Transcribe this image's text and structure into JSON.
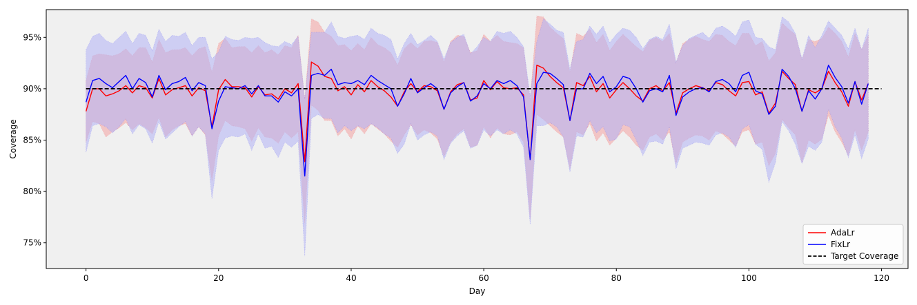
{
  "chart_data": {
    "type": "line",
    "xlabel": "Day",
    "ylabel": "Coverage",
    "xlim": [
      -6,
      124
    ],
    "ylim": [
      72.5,
      97.7
    ],
    "x_ticks": [
      0,
      20,
      40,
      60,
      80,
      100,
      120
    ],
    "x_tick_labels": [
      "0",
      "20",
      "40",
      "60",
      "80",
      "100",
      "120"
    ],
    "y_ticks": [
      75,
      80,
      85,
      90,
      95
    ],
    "y_tick_labels": [
      "75%",
      "80%",
      "85%",
      "90%",
      "95%"
    ],
    "grid": false,
    "legend_position": "lower-right",
    "plot_background": "#f0f0f0",
    "target": {
      "name": "Target Coverage",
      "value": 90,
      "color": "#000000"
    },
    "x": [
      0,
      1,
      2,
      3,
      4,
      5,
      6,
      7,
      8,
      9,
      10,
      11,
      12,
      13,
      14,
      15,
      16,
      17,
      18,
      19,
      20,
      21,
      22,
      23,
      24,
      25,
      26,
      27,
      28,
      29,
      30,
      31,
      32,
      33,
      34,
      35,
      36,
      37,
      38,
      39,
      40,
      41,
      42,
      43,
      44,
      45,
      46,
      47,
      48,
      49,
      50,
      51,
      52,
      53,
      54,
      55,
      56,
      57,
      58,
      59,
      60,
      61,
      62,
      63,
      64,
      65,
      66,
      67,
      68,
      69,
      70,
      71,
      72,
      73,
      74,
      75,
      76,
      77,
      78,
      79,
      80,
      81,
      82,
      83,
      84,
      85,
      86,
      87,
      88,
      89,
      90,
      91,
      92,
      93,
      94,
      95,
      96,
      97,
      98,
      99,
      100,
      101,
      102,
      103,
      104,
      105,
      106,
      107,
      108,
      109,
      110,
      111,
      112,
      113,
      114,
      115,
      116,
      117,
      118
    ],
    "series": [
      {
        "name": "AdaLr",
        "color": "#ff0000",
        "band_color": "#f4a3a3",
        "values": [
          87.8,
          90.0,
          90.0,
          89.3,
          89.5,
          89.8,
          90.3,
          89.6,
          90.3,
          90.1,
          89.1,
          91.0,
          89.4,
          89.9,
          90.1,
          90.3,
          89.3,
          90.1,
          89.8,
          86.3,
          89.9,
          90.9,
          90.2,
          90.2,
          90.1,
          89.2,
          90.2,
          89.4,
          89.5,
          89.0,
          90.0,
          89.6,
          90.5,
          82.9,
          92.6,
          92.2,
          91.2,
          91.0,
          89.8,
          90.2,
          89.4,
          90.4,
          89.7,
          90.8,
          90.2,
          89.8,
          89.2,
          88.3,
          89.7,
          90.5,
          89.7,
          90.3,
          90.2,
          89.8,
          88.0,
          89.7,
          90.4,
          90.6,
          88.9,
          89.1,
          90.8,
          89.9,
          90.7,
          90.1,
          90.0,
          90.1,
          89.4,
          83.1,
          92.3,
          92.0,
          91.2,
          90.6,
          90.1,
          86.9,
          90.6,
          90.3,
          91.2,
          89.7,
          90.5,
          89.1,
          89.9,
          90.6,
          90.0,
          89.3,
          88.8,
          90.0,
          90.3,
          89.8,
          90.6,
          87.6,
          89.6,
          90.0,
          90.3,
          90.1,
          89.8,
          90.6,
          90.4,
          89.8,
          89.3,
          90.6,
          90.7,
          89.4,
          89.7,
          87.6,
          88.6,
          91.7,
          91.0,
          90.4,
          87.8,
          89.9,
          89.6,
          90.0,
          91.7,
          90.6,
          89.7,
          88.3,
          90.7,
          88.9,
          90.5
        ],
        "lower": [
          84.8,
          86.8,
          86.6,
          85.3,
          85.8,
          86.2,
          86.7,
          86.0,
          86.6,
          86.2,
          85.6,
          87.2,
          85.3,
          86.0,
          86.4,
          86.6,
          85.4,
          86.3,
          85.5,
          81.0,
          85.4,
          86.9,
          86.4,
          86.3,
          86.1,
          84.9,
          86.2,
          85.3,
          85.2,
          84.7,
          85.8,
          85.2,
          85.8,
          76.8,
          88.4,
          87.9,
          86.9,
          86.9,
          85.4,
          86.1,
          85.1,
          86.4,
          85.6,
          86.6,
          86.1,
          85.6,
          84.9,
          84.3,
          85.5,
          86.5,
          85.5,
          86.0,
          85.7,
          85.1,
          83.4,
          84.8,
          85.6,
          86.1,
          84.3,
          84.5,
          86.3,
          85.2,
          86.2,
          85.6,
          85.5,
          85.8,
          84.8,
          77.3,
          87.5,
          87.0,
          86.4,
          85.8,
          85.3,
          82.2,
          85.8,
          85.5,
          86.6,
          84.9,
          85.7,
          84.5,
          85.2,
          85.9,
          85.3,
          84.5,
          84.0,
          85.3,
          85.6,
          85.0,
          85.8,
          82.7,
          84.8,
          85.2,
          85.5,
          85.4,
          85.0,
          85.9,
          85.6,
          85.0,
          84.4,
          85.8,
          86.0,
          84.6,
          84.8,
          82.5,
          83.7,
          87.0,
          86.2,
          85.5,
          82.8,
          85.0,
          84.6,
          85.1,
          87.4,
          85.8,
          84.8,
          83.5,
          86.0,
          84.0,
          85.8
        ],
        "upper": [
          90.8,
          93.2,
          93.4,
          93.3,
          93.2,
          93.4,
          93.9,
          93.2,
          94.0,
          94.0,
          92.6,
          94.8,
          93.5,
          93.8,
          93.8,
          94.0,
          93.2,
          93.9,
          94.1,
          91.6,
          94.4,
          94.9,
          94.0,
          94.1,
          94.1,
          93.5,
          94.2,
          93.5,
          93.8,
          93.3,
          94.2,
          94.0,
          95.2,
          89.0,
          96.8,
          96.5,
          95.5,
          95.1,
          94.2,
          94.3,
          93.7,
          94.4,
          93.8,
          95.0,
          94.3,
          94.0,
          93.5,
          92.3,
          93.9,
          94.5,
          93.9,
          94.6,
          94.7,
          94.5,
          92.6,
          94.6,
          95.2,
          95.1,
          93.5,
          93.7,
          95.3,
          94.6,
          95.2,
          94.6,
          94.5,
          94.4,
          94.0,
          88.9,
          97.1,
          97.0,
          96.0,
          95.4,
          94.9,
          91.6,
          95.4,
          95.1,
          95.8,
          94.5,
          95.3,
          93.7,
          94.6,
          95.3,
          94.7,
          94.1,
          93.6,
          94.7,
          95.0,
          94.6,
          95.4,
          92.5,
          94.4,
          94.8,
          95.1,
          94.8,
          94.6,
          95.3,
          95.2,
          94.6,
          94.2,
          95.4,
          95.4,
          94.2,
          94.6,
          92.7,
          93.5,
          96.4,
          95.8,
          95.3,
          92.8,
          94.8,
          94.6,
          94.9,
          96.0,
          95.4,
          94.6,
          93.1,
          95.4,
          93.8,
          95.2
        ]
      },
      {
        "name": "FixLr",
        "color": "#0000ff",
        "band_color": "#b3b3f5",
        "values": [
          88.7,
          90.8,
          91.0,
          90.5,
          90.1,
          90.7,
          91.3,
          90.0,
          91.0,
          90.6,
          89.2,
          91.3,
          89.9,
          90.5,
          90.7,
          91.1,
          89.8,
          90.6,
          90.3,
          86.1,
          88.8,
          90.2,
          90.1,
          90.0,
          90.3,
          89.5,
          90.3,
          89.3,
          89.3,
          88.7,
          89.7,
          89.3,
          90.0,
          81.5,
          91.3,
          91.5,
          91.3,
          91.9,
          90.4,
          90.6,
          90.5,
          90.8,
          90.4,
          91.3,
          90.8,
          90.4,
          90.0,
          88.3,
          89.5,
          91.0,
          89.6,
          90.1,
          90.5,
          90.0,
          88.0,
          89.6,
          90.2,
          90.6,
          88.8,
          89.3,
          90.5,
          90.0,
          90.8,
          90.5,
          90.8,
          90.3,
          89.2,
          83.1,
          90.5,
          91.6,
          91.5,
          91.0,
          90.4,
          86.9,
          90.0,
          90.0,
          91.5,
          90.5,
          91.2,
          89.7,
          90.2,
          91.2,
          91.0,
          90.0,
          88.7,
          89.8,
          90.0,
          89.7,
          91.3,
          87.4,
          89.2,
          89.7,
          90.0,
          90.1,
          89.7,
          90.7,
          90.9,
          90.5,
          89.7,
          91.3,
          91.6,
          89.8,
          89.5,
          87.5,
          88.3,
          91.9,
          91.2,
          90.0,
          87.8,
          89.8,
          89.0,
          90.0,
          92.3,
          91.1,
          90.2,
          88.6,
          90.7,
          88.5,
          90.5
        ],
        "lower": [
          83.8,
          86.4,
          86.6,
          86.3,
          85.7,
          86.3,
          87.1,
          85.6,
          86.5,
          86.1,
          84.7,
          86.8,
          85.1,
          85.7,
          86.3,
          86.8,
          85.4,
          86.3,
          85.6,
          79.3,
          84.0,
          85.2,
          85.4,
          85.3,
          85.6,
          84.0,
          85.6,
          84.2,
          84.4,
          83.3,
          84.8,
          84.3,
          84.9,
          73.7,
          87.1,
          87.5,
          87.1,
          87.1,
          85.7,
          86.4,
          85.9,
          86.4,
          86.1,
          86.6,
          86.2,
          85.6,
          85.2,
          83.7,
          84.6,
          86.6,
          85.0,
          85.5,
          85.8,
          85.4,
          83.1,
          84.7,
          85.4,
          85.9,
          84.2,
          84.5,
          86.0,
          85.4,
          86.0,
          85.6,
          86.0,
          85.6,
          84.3,
          76.8,
          86.4,
          86.4,
          86.7,
          86.3,
          85.3,
          81.9,
          85.4,
          85.3,
          86.9,
          85.7,
          86.3,
          84.9,
          85.1,
          86.5,
          86.3,
          85.0,
          83.5,
          84.8,
          84.9,
          84.6,
          86.3,
          82.2,
          84.2,
          84.5,
          84.8,
          84.7,
          84.5,
          85.5,
          85.7,
          85.3,
          84.3,
          86.1,
          86.5,
          84.6,
          84.1,
          80.9,
          82.8,
          86.8,
          85.9,
          84.6,
          82.7,
          84.4,
          84.0,
          84.8,
          88.0,
          86.3,
          85.2,
          83.3,
          85.5,
          83.2,
          85.1
        ],
        "upper": [
          93.8,
          95.1,
          95.4,
          94.7,
          94.4,
          95.0,
          95.6,
          94.4,
          95.4,
          95.2,
          93.7,
          95.8,
          94.6,
          95.2,
          95.1,
          95.5,
          94.2,
          95.0,
          95.0,
          92.9,
          93.6,
          95.1,
          94.8,
          94.7,
          95.0,
          94.9,
          95.0,
          94.5,
          94.2,
          94.1,
          94.6,
          94.3,
          95.1,
          89.0,
          95.5,
          95.5,
          95.5,
          96.5,
          95.1,
          94.9,
          95.1,
          95.2,
          94.8,
          95.9,
          95.4,
          95.2,
          94.8,
          92.9,
          94.4,
          95.4,
          94.3,
          94.7,
          95.2,
          94.6,
          92.9,
          94.5,
          95.0,
          95.3,
          93.4,
          94.1,
          95.0,
          94.6,
          95.6,
          95.4,
          95.6,
          95.0,
          94.1,
          89.3,
          94.6,
          96.8,
          96.3,
          95.7,
          95.5,
          91.9,
          94.6,
          94.8,
          96.1,
          95.3,
          96.1,
          94.5,
          95.3,
          95.9,
          95.7,
          95.0,
          93.9,
          94.8,
          95.1,
          94.8,
          96.3,
          92.6,
          94.2,
          94.9,
          95.2,
          95.5,
          94.9,
          95.9,
          96.1,
          95.7,
          95.1,
          96.5,
          96.7,
          95.0,
          94.9,
          94.1,
          93.8,
          97.0,
          96.5,
          95.4,
          92.9,
          95.2,
          94.0,
          95.2,
          96.6,
          95.9,
          95.2,
          93.9,
          95.9,
          93.8,
          95.9
        ]
      }
    ]
  }
}
